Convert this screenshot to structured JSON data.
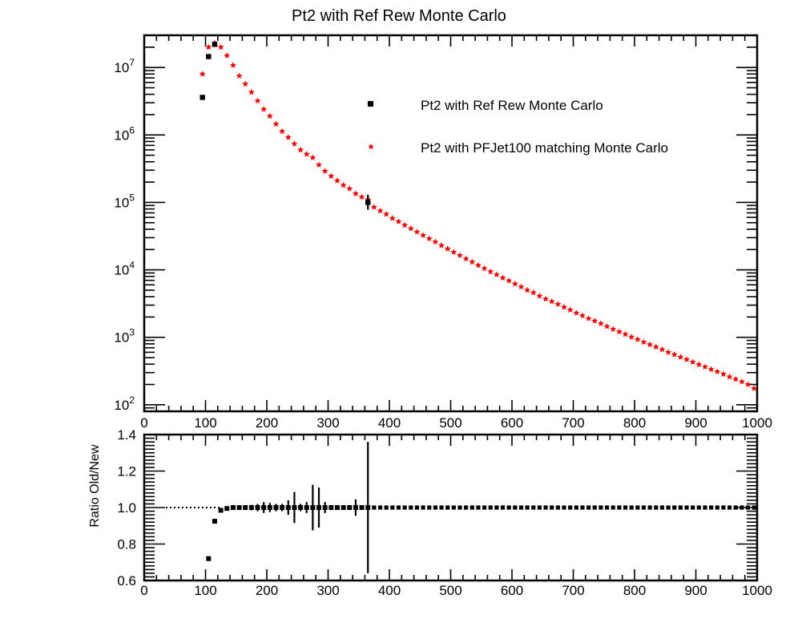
{
  "chart_data": [
    {
      "type": "scatter",
      "title": "Pt2 with Ref Rew Monte Carlo",
      "xlabel": "",
      "ylabel": "",
      "xlim": [
        0,
        1000
      ],
      "ylim": [
        80,
        30000000
      ],
      "yscale": "log",
      "x_ticks": [
        0,
        100,
        200,
        300,
        400,
        500,
        600,
        700,
        800,
        900,
        1000
      ],
      "y_tick_base": "10",
      "y_tick_exponents": [
        "2",
        "3",
        "4",
        "5",
        "6",
        "7"
      ],
      "legend_position": "top-right",
      "series": [
        {
          "name": "Pt2 with Ref Rew Monte Carlo",
          "color": "#000000",
          "marker": "square",
          "points": [
            [
              95,
              3600000
            ],
            [
              105,
              14500000
            ],
            [
              115,
              22000000
            ],
            [
              365,
              100000
            ]
          ]
        },
        {
          "name": "Pt2 with PFJet100 matching Monte Carlo",
          "color": "#ff0000",
          "marker": "star",
          "points": [
            [
              95,
              8000000
            ],
            [
              105,
              20000000
            ],
            [
              115,
              23000000
            ],
            [
              125,
              20000000
            ],
            [
              135,
              15000000
            ],
            [
              145,
              10800000
            ],
            [
              155,
              7500000
            ],
            [
              165,
              5700000
            ],
            [
              175,
              4300000
            ],
            [
              185,
              3200000
            ],
            [
              195,
              2400000
            ],
            [
              205,
              1900000
            ],
            [
              215,
              1450000
            ],
            [
              225,
              1130000
            ],
            [
              235,
              920000
            ],
            [
              245,
              740000
            ],
            [
              255,
              600000
            ],
            [
              265,
              520000
            ],
            [
              275,
              460000
            ],
            [
              285,
              360000
            ],
            [
              295,
              290000
            ],
            [
              305,
              245000
            ],
            [
              315,
              210000
            ],
            [
              325,
              180000
            ],
            [
              335,
              160000
            ],
            [
              345,
              135000
            ],
            [
              355,
              120000
            ],
            [
              365,
              110000
            ],
            [
              375,
              85000
            ],
            [
              385,
              75000
            ],
            [
              395,
              67000
            ],
            [
              405,
              58000
            ],
            [
              415,
              52000
            ],
            [
              425,
              46000
            ],
            [
              435,
              41000
            ],
            [
              445,
              36500
            ],
            [
              455,
              32500
            ],
            [
              465,
              29000
            ],
            [
              475,
              26000
            ],
            [
              485,
              23000
            ],
            [
              495,
              20500
            ],
            [
              505,
              18300
            ],
            [
              515,
              16400
            ],
            [
              525,
              14600
            ],
            [
              535,
              13100
            ],
            [
              545,
              11700
            ],
            [
              555,
              10500
            ],
            [
              565,
              9400
            ],
            [
              575,
              8500
            ],
            [
              585,
              7600
            ],
            [
              595,
              6900
            ],
            [
              605,
              6200
            ],
            [
              615,
              5600
            ],
            [
              625,
              5000
            ],
            [
              635,
              4600
            ],
            [
              645,
              4100
            ],
            [
              655,
              3700
            ],
            [
              665,
              3400
            ],
            [
              675,
              3100
            ],
            [
              685,
              2800
            ],
            [
              695,
              2550
            ],
            [
              705,
              2300
            ],
            [
              715,
              2100
            ],
            [
              725,
              1900
            ],
            [
              735,
              1750
            ],
            [
              745,
              1600
            ],
            [
              755,
              1450
            ],
            [
              765,
              1320
            ],
            [
              775,
              1210
            ],
            [
              785,
              1110
            ],
            [
              795,
              1010
            ],
            [
              805,
              930
            ],
            [
              815,
              850
            ],
            [
              825,
              780
            ],
            [
              835,
              720
            ],
            [
              845,
              660
            ],
            [
              855,
              600
            ],
            [
              865,
              555
            ],
            [
              875,
              510
            ],
            [
              885,
              470
            ],
            [
              895,
              430
            ],
            [
              905,
              395
            ],
            [
              915,
              365
            ],
            [
              925,
              335
            ],
            [
              935,
              310
            ],
            [
              945,
              285
            ],
            [
              955,
              260
            ],
            [
              965,
              240
            ],
            [
              975,
              220
            ],
            [
              985,
              200
            ],
            [
              995,
              175
            ]
          ]
        }
      ]
    },
    {
      "type": "scatter",
      "title": "",
      "xlabel": "",
      "ylabel": "Ratio Old/New",
      "xlim": [
        0,
        1000
      ],
      "ylim": [
        0.6,
        1.4
      ],
      "x_ticks": [
        0,
        100,
        200,
        300,
        400,
        500,
        600,
        700,
        800,
        900,
        1000
      ],
      "y_ticks": [
        "0.6",
        "0.8",
        "1.0",
        "1.2",
        "1.4"
      ],
      "reference_line": 1.0,
      "series": [
        {
          "name": "",
          "color": "#000000",
          "marker": "square",
          "points": [
            [
              105,
              0.72,
              0
            ],
            [
              115,
              0.925,
              0
            ],
            [
              125,
              0.985,
              0
            ],
            [
              135,
              0.995,
              0
            ],
            [
              145,
              1.0,
              0.005
            ],
            [
              155,
              1.0,
              0.008
            ],
            [
              165,
              1.0,
              0.01
            ],
            [
              175,
              1.0,
              0.015
            ],
            [
              185,
              1.0,
              0.02
            ],
            [
              195,
              1.0,
              0.03
            ],
            [
              205,
              1.0,
              0.025
            ],
            [
              215,
              1.0,
              0.02
            ],
            [
              225,
              1.0,
              0.02
            ],
            [
              235,
              1.0,
              0.04
            ],
            [
              245,
              1.0,
              0.085
            ],
            [
              255,
              1.0,
              0.02
            ],
            [
              265,
              1.0,
              0.03
            ],
            [
              275,
              1.0,
              0.125
            ],
            [
              285,
              1.0,
              0.11
            ],
            [
              295,
              1.0,
              0.03
            ],
            [
              305,
              1.0,
              0.01
            ],
            [
              315,
              1.0,
              0.01
            ],
            [
              325,
              1.0,
              0.01
            ],
            [
              335,
              1.0,
              0.01
            ],
            [
              345,
              1.0,
              0.045
            ],
            [
              355,
              1.0,
              0.01
            ],
            [
              365,
              1.0,
              0.36
            ]
          ],
          "flat_from": 375,
          "flat_to": 995,
          "flat_step": 10,
          "flat_value": 1.0
        }
      ]
    }
  ]
}
